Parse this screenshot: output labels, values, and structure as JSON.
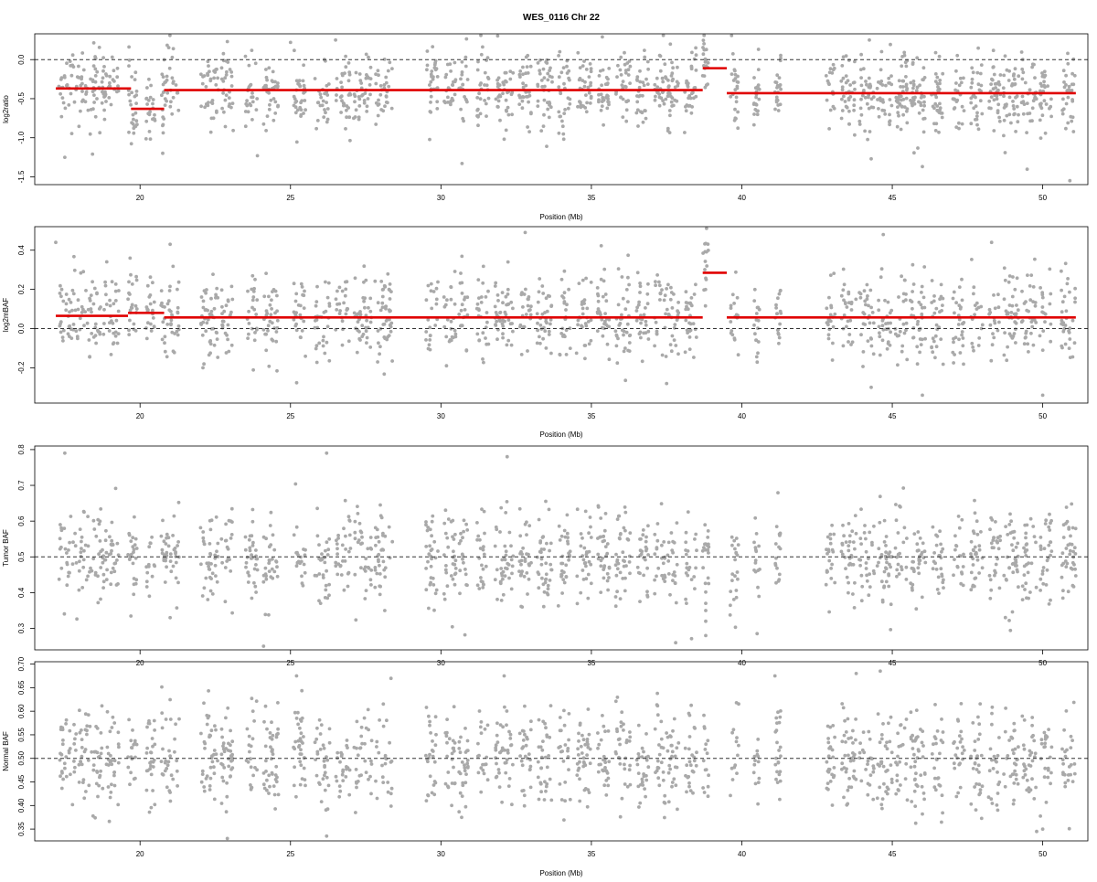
{
  "title": "WES_0116 Chr 22",
  "colors": {
    "points": "#a9a9a9",
    "segments": "#e00000",
    "reference_line": "#333333",
    "frame": "#000000"
  },
  "chart_data": [
    {
      "type": "scatter",
      "title": "WES_0116 Chr 22",
      "xlabel": "Position (Mb)",
      "ylabel": "log2ratio",
      "xlim": [
        16.5,
        51.5
      ],
      "ylim": [
        -1.6,
        0.33
      ],
      "x_ticks": [
        20,
        25,
        30,
        35,
        40,
        45,
        50
      ],
      "x_tick_labels": [
        "20",
        "25",
        "30",
        "35",
        "40",
        "45",
        "50"
      ],
      "y_ticks": [
        -1.5,
        -1.0,
        -0.5,
        0.0
      ],
      "y_tick_labels": [
        "-1.5",
        "-1.0",
        "-0.5",
        "0.0"
      ],
      "reference_line": 0.0,
      "point_spread": 0.24,
      "point_count": 1500,
      "segments": [
        {
          "x0": 17.2,
          "x1": 19.7,
          "y": -0.37
        },
        {
          "x0": 19.7,
          "x1": 20.8,
          "y": -0.63
        },
        {
          "x0": 20.8,
          "x1": 38.7,
          "y": -0.39
        },
        {
          "x0": 38.7,
          "x1": 39.5,
          "y": -0.11
        },
        {
          "x0": 39.5,
          "x1": 51.1,
          "y": -0.43
        }
      ],
      "outliers": [
        {
          "x": 17.5,
          "y": -1.25
        },
        {
          "x": 23.9,
          "y": -1.23
        },
        {
          "x": 30.7,
          "y": -1.33
        },
        {
          "x": 44.3,
          "y": -1.27
        },
        {
          "x": 46.0,
          "y": -1.37
        },
        {
          "x": 50.9,
          "y": -1.55
        },
        {
          "x": 22.9,
          "y": 0.23
        },
        {
          "x": 26.5,
          "y": 0.25
        },
        {
          "x": 25.0,
          "y": 0.22
        }
      ]
    },
    {
      "type": "scatter",
      "xlabel": "Position (Mb)",
      "ylabel": "log2mBAF",
      "xlim": [
        16.5,
        51.5
      ],
      "ylim": [
        -0.38,
        0.52
      ],
      "x_ticks": [
        20,
        25,
        30,
        35,
        40,
        45,
        50
      ],
      "x_tick_labels": [
        "20",
        "25",
        "30",
        "35",
        "40",
        "45",
        "50"
      ],
      "y_ticks": [
        -0.2,
        0.0,
        0.2,
        0.4
      ],
      "y_tick_labels": [
        "-0.2",
        "0.0",
        "0.2",
        "0.4"
      ],
      "reference_line": 0.0,
      "point_spread": 0.11,
      "point_count": 1350,
      "segments": [
        {
          "x0": 17.2,
          "x1": 19.6,
          "y": 0.065
        },
        {
          "x0": 19.6,
          "x1": 20.8,
          "y": 0.08
        },
        {
          "x0": 20.8,
          "x1": 38.7,
          "y": 0.057
        },
        {
          "x0": 38.7,
          "x1": 39.5,
          "y": 0.285
        },
        {
          "x0": 39.5,
          "x1": 51.1,
          "y": 0.057
        }
      ],
      "outliers": [
        {
          "x": 17.2,
          "y": 0.44
        },
        {
          "x": 21.0,
          "y": 0.43
        },
        {
          "x": 32.8,
          "y": 0.49
        },
        {
          "x": 44.7,
          "y": 0.48
        },
        {
          "x": 48.3,
          "y": 0.44
        },
        {
          "x": 44.3,
          "y": -0.3
        },
        {
          "x": 46.0,
          "y": -0.34
        },
        {
          "x": 50.0,
          "y": -0.34
        },
        {
          "x": 37.5,
          "y": -0.28
        }
      ]
    },
    {
      "type": "scatter",
      "xlabel": "",
      "ylabel": "Tumor BAF",
      "xlim": [
        16.5,
        51.5
      ],
      "ylim": [
        0.24,
        0.81
      ],
      "x_ticks": [
        20,
        25,
        30,
        35,
        40,
        45,
        50
      ],
      "x_tick_labels": [
        "20",
        "25",
        "30",
        "35",
        "40",
        "45",
        "50"
      ],
      "y_ticks": [
        0.3,
        0.4,
        0.5,
        0.6,
        0.7,
        0.8
      ],
      "y_tick_labels": [
        "0.3",
        "0.4",
        "0.5",
        "0.6",
        "0.7",
        "0.8"
      ],
      "reference_line": 0.5,
      "point_spread": 0.065,
      "point_count": 1350,
      "segments": [],
      "outliers": [
        {
          "x": 17.5,
          "y": 0.79
        },
        {
          "x": 26.2,
          "y": 0.79
        },
        {
          "x": 32.2,
          "y": 0.78
        },
        {
          "x": 21.0,
          "y": 0.33
        },
        {
          "x": 26.0,
          "y": 0.37
        },
        {
          "x": 32.7,
          "y": 0.36
        },
        {
          "x": 37.8,
          "y": 0.26
        },
        {
          "x": 38.8,
          "y": 0.28
        },
        {
          "x": 38.8,
          "y": 0.32
        },
        {
          "x": 38.8,
          "y": 0.35
        },
        {
          "x": 38.8,
          "y": 0.37
        }
      ]
    },
    {
      "type": "scatter",
      "xlabel": "Position (Mb)",
      "ylabel": "Normal BAF",
      "xlim": [
        16.5,
        51.5
      ],
      "ylim": [
        0.325,
        0.705
      ],
      "x_ticks": [
        20,
        25,
        30,
        35,
        40,
        45,
        50
      ],
      "x_tick_labels": [
        "20",
        "25",
        "30",
        "35",
        "40",
        "45",
        "50"
      ],
      "y_ticks": [
        0.35,
        0.4,
        0.45,
        0.5,
        0.55,
        0.6,
        0.65,
        0.7
      ],
      "y_tick_labels": [
        "0.35",
        "0.40",
        "0.45",
        "0.50",
        "0.55",
        "0.60",
        "0.65",
        "0.70"
      ],
      "reference_line": 0.5,
      "point_spread": 0.052,
      "point_count": 1350,
      "segments": [],
      "outliers": [
        {
          "x": 22.9,
          "y": 0.33
        },
        {
          "x": 26.2,
          "y": 0.335
        },
        {
          "x": 32.1,
          "y": 0.675
        },
        {
          "x": 43.8,
          "y": 0.68
        },
        {
          "x": 44.6,
          "y": 0.685
        },
        {
          "x": 49.8,
          "y": 0.345
        },
        {
          "x": 50.0,
          "y": 0.35
        },
        {
          "x": 25.2,
          "y": 0.675
        },
        {
          "x": 41.1,
          "y": 0.675
        }
      ]
    }
  ],
  "probe_clusters": [
    [
      17.3,
      19.3
    ],
    [
      19.6,
      19.9
    ],
    [
      20.2,
      20.5
    ],
    [
      20.7,
      21.3
    ],
    [
      22.0,
      22.6
    ],
    [
      22.7,
      23.1
    ],
    [
      23.5,
      23.9
    ],
    [
      24.1,
      24.6
    ],
    [
      25.1,
      25.5
    ],
    [
      25.8,
      26.3
    ],
    [
      26.5,
      27.0
    ],
    [
      27.1,
      27.7
    ],
    [
      27.8,
      28.4
    ],
    [
      29.5,
      29.9
    ],
    [
      30.1,
      30.5
    ],
    [
      30.6,
      30.9
    ],
    [
      31.2,
      31.6
    ],
    [
      31.8,
      32.4
    ],
    [
      32.6,
      33.0
    ],
    [
      33.2,
      33.7
    ],
    [
      33.9,
      34.3
    ],
    [
      34.5,
      35.0
    ],
    [
      35.2,
      35.6
    ],
    [
      35.8,
      36.3
    ],
    [
      36.5,
      36.9
    ],
    [
      37.1,
      37.9
    ],
    [
      38.1,
      38.5
    ],
    [
      38.7,
      38.9
    ],
    [
      39.6,
      39.9
    ],
    [
      40.4,
      40.6
    ],
    [
      41.1,
      41.3
    ],
    [
      42.8,
      43.1
    ],
    [
      43.3,
      43.8
    ],
    [
      43.9,
      44.4
    ],
    [
      44.5,
      45.0
    ],
    [
      45.1,
      45.5
    ],
    [
      45.6,
      46.1
    ],
    [
      46.3,
      46.7
    ],
    [
      47.0,
      47.4
    ],
    [
      47.6,
      48.0
    ],
    [
      48.2,
      48.6
    ],
    [
      48.7,
      49.2
    ],
    [
      49.3,
      49.8
    ],
    [
      49.9,
      50.3
    ],
    [
      50.6,
      51.1
    ]
  ]
}
